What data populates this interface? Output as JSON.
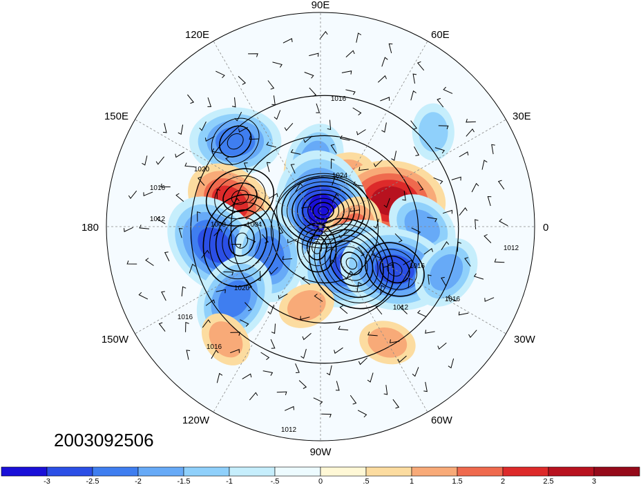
{
  "map": {
    "projection": "north-polar-stereographic",
    "date_stamp": "2003092506",
    "longitude_labels": {
      "lon_90E": "90E",
      "lon_120E": "120E",
      "lon_60E": "60E",
      "lon_150E": "150E",
      "lon_30E": "30E",
      "lon_180": "180",
      "lon_0": "0",
      "lon_150W": "150W",
      "lon_30W": "30W",
      "lon_120W": "120W",
      "lon_60W": "60W",
      "lon_90W": "90W"
    },
    "contour_labels": [
      "1016",
      "1024",
      "1020",
      "1016",
      "1012",
      "1008",
      "1004",
      "1020",
      "1016",
      "1016",
      "1016",
      "1016",
      "1012",
      "1012",
      "1012"
    ],
    "anomaly_centers": [
      {
        "lon": 135,
        "lat": 45,
        "value": -2
      },
      {
        "lon": 165,
        "lat": 55,
        "value": 2
      },
      {
        "lon": 100,
        "lat": 72,
        "value": 1.5
      },
      {
        "lon": 95,
        "lat": 65,
        "value": -1.5
      },
      {
        "lon": 65,
        "lat": 72,
        "value": 1.5
      },
      {
        "lon": 20,
        "lat": 62,
        "value": 2.5
      },
      {
        "lon": 0,
        "lat": 52,
        "value": -1.5
      },
      {
        "lon": 80,
        "lat": 85,
        "value": -3
      },
      {
        "lon": -10,
        "lat": 78,
        "value": 1.5
      },
      {
        "lon": -50,
        "lat": 72,
        "value": -2.5
      },
      {
        "lon": -30,
        "lat": 58,
        "value": -2.5
      },
      {
        "lon": -170,
        "lat": 50,
        "value": -2.5
      },
      {
        "lon": -150,
        "lat": 68,
        "value": -2
      },
      {
        "lon": -140,
        "lat": 48,
        "value": -2
      },
      {
        "lon": -100,
        "lat": 60,
        "value": 1
      },
      {
        "lon": -60,
        "lat": 40,
        "value": 1
      },
      {
        "lon": -130,
        "lat": 35,
        "value": 1
      },
      {
        "lon": 40,
        "lat": 35,
        "value": -1
      },
      {
        "lon": -20,
        "lat": 40,
        "value": -1.5
      }
    ],
    "colors": {
      "land_outline": "#333333",
      "contour": "#000000",
      "grid": "#888888"
    }
  },
  "colorbar": {
    "tick_labels": [
      "-3",
      "-2.5",
      "-2",
      "-1.5",
      "-1",
      "-.5",
      "0",
      ".5",
      "1",
      "1.5",
      "2",
      "2.5",
      "3"
    ],
    "tick_values": [
      -3,
      -2.5,
      -2,
      -1.5,
      -1,
      -0.5,
      0,
      0.5,
      1,
      1.5,
      2,
      2.5,
      3
    ],
    "colors": [
      "#1a10d8",
      "#2b4fe6",
      "#3f7ef0",
      "#67aaf7",
      "#8fd0fb",
      "#c6eefc",
      "#edfbff",
      "#fff8d6",
      "#fcdca0",
      "#f8aa78",
      "#ef6a4e",
      "#dd2a2a",
      "#b8121f",
      "#950a1a"
    ]
  }
}
